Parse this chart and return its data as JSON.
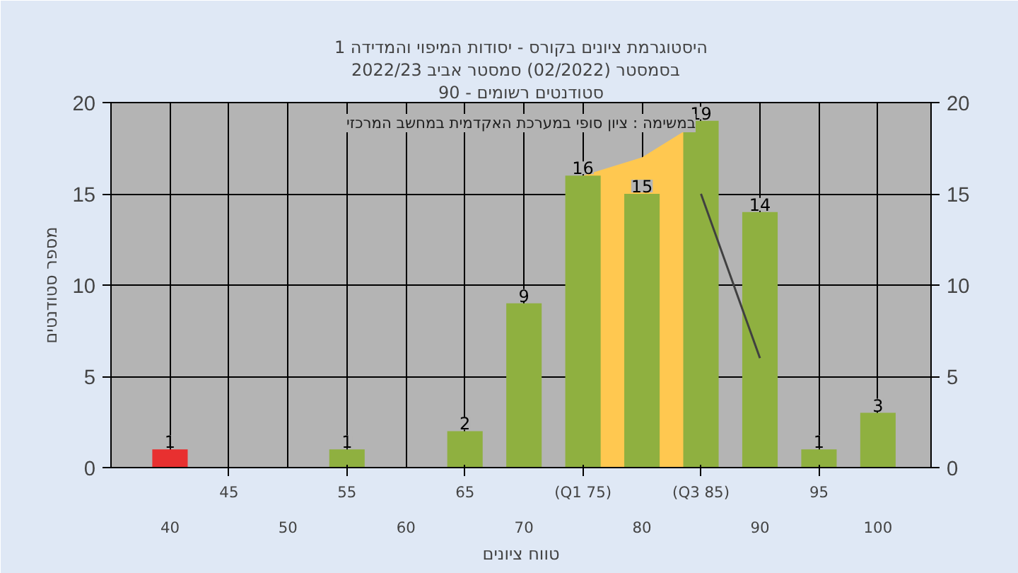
{
  "chart_data": {
    "type": "bar",
    "title": "היסטוגרמת ציונים בקורס - יסודות המיפוי והמדידה 1",
    "subtitle": "בסמסטר  (02/2022)  סמסטר אביב 2022/23",
    "xlabel": "טווח ציונים",
    "ylabel": "מספר סטודנטים",
    "annotations": [
      "סטודנטים רשומים - 90",
      "במשימה : ציון סופי במערכת האקדמית במחשב המרכזי"
    ],
    "categories": [
      "40",
      "45",
      "50",
      "55",
      "60",
      "65",
      "70",
      "(Q1 75)",
      "80",
      "(Q3 85)",
      "90",
      "95",
      "100"
    ],
    "series": [
      {
        "type": "area",
        "color": "#ffc850",
        "values": [
          null,
          null,
          null,
          null,
          null,
          null,
          null,
          16,
          17,
          19,
          null,
          null,
          null
        ]
      },
      {
        "type": "line",
        "color": "#404040",
        "values": [
          null,
          null,
          null,
          null,
          null,
          null,
          null,
          null,
          null,
          15,
          6,
          null,
          null
        ]
      },
      {
        "colors": [
          "#e83030",
          "#8fb040",
          "#8fb040",
          "#8fb040",
          "#8fb040",
          "#8fb040",
          "#8fb040",
          "#8fb040",
          "#8fb040",
          "#8fb040",
          "#8fb040",
          "#8fb040",
          "#8fb040"
        ],
        "values": [
          1,
          0,
          0,
          1,
          0,
          2,
          9,
          16,
          15,
          19,
          14,
          1,
          3
        ],
        "value_labels": [
          "1",
          null,
          null,
          "1",
          null,
          "2",
          "9",
          "16",
          "15",
          "19",
          "14",
          "1",
          "3"
        ]
      }
    ],
    "ylim": [
      0,
      20
    ],
    "yticks": [
      0,
      5,
      10,
      15,
      20
    ],
    "y2lim": [
      0,
      20
    ],
    "y2ticks": [
      0,
      5,
      10,
      15,
      20
    ],
    "grid": true
  }
}
